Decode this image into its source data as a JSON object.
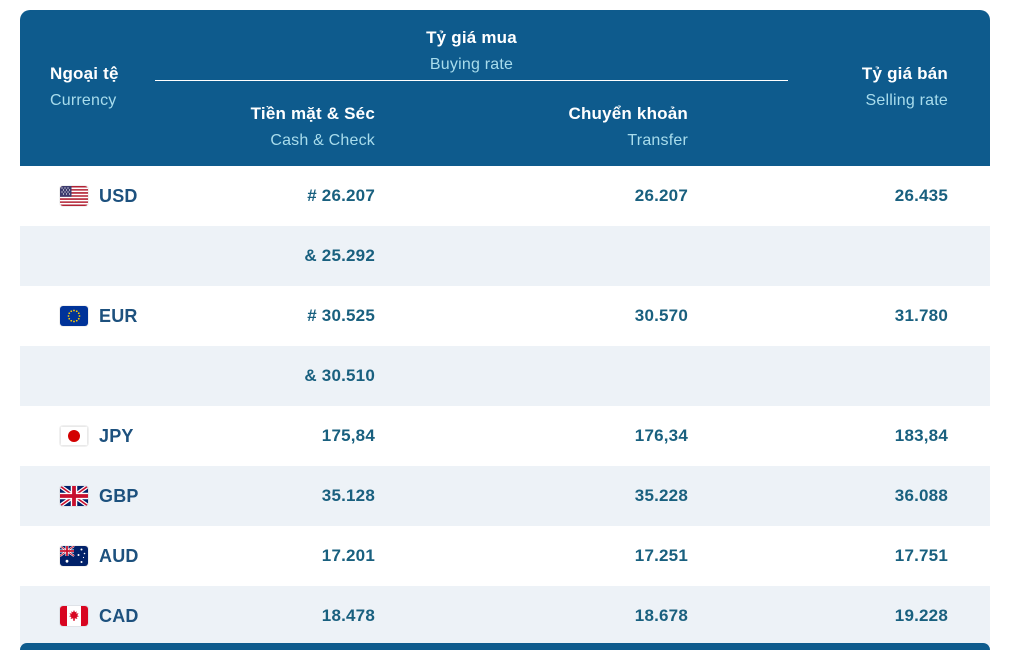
{
  "colors": {
    "header_bg": "#0e5b8d",
    "header_subtitle": "#a8dcec",
    "alt_row_bg": "#edf2f7",
    "value_text": "#19607f",
    "code_text": "#1d517e"
  },
  "table": {
    "header": {
      "currency_vi": "Ngoại tệ",
      "currency_en": "Currency",
      "buying_vi": "Tỷ giá mua",
      "buying_en": "Buying rate",
      "cash_vi": "Tiền mặt & Séc",
      "cash_en": "Cash & Check",
      "transfer_vi": "Chuyển khoản",
      "transfer_en": "Transfer",
      "selling_vi": "Tỷ giá bán",
      "selling_en": "Selling rate"
    },
    "rows": [
      {
        "flag": "us-flag-icon",
        "code": "USD",
        "cash": "# 26.207",
        "transfer": "26.207",
        "selling": "26.435",
        "alt": false
      },
      {
        "flag": "",
        "code": "",
        "cash": "& 25.292",
        "transfer": "",
        "selling": "",
        "alt": true
      },
      {
        "flag": "eu-flag-icon",
        "code": "EUR",
        "cash": "# 30.525",
        "transfer": "30.570",
        "selling": "31.780",
        "alt": false
      },
      {
        "flag": "",
        "code": "",
        "cash": "& 30.510",
        "transfer": "",
        "selling": "",
        "alt": true
      },
      {
        "flag": "jp-flag-icon",
        "code": "JPY",
        "cash": "175,84",
        "transfer": "176,34",
        "selling": "183,84",
        "alt": false
      },
      {
        "flag": "gb-flag-icon",
        "code": "GBP",
        "cash": "35.128",
        "transfer": "35.228",
        "selling": "36.088",
        "alt": true
      },
      {
        "flag": "au-flag-icon",
        "code": "AUD",
        "cash": "17.201",
        "transfer": "17.251",
        "selling": "17.751",
        "alt": false
      },
      {
        "flag": "ca-flag-icon",
        "code": "CAD",
        "cash": "18.478",
        "transfer": "18.678",
        "selling": "19.228",
        "alt": true
      }
    ]
  }
}
